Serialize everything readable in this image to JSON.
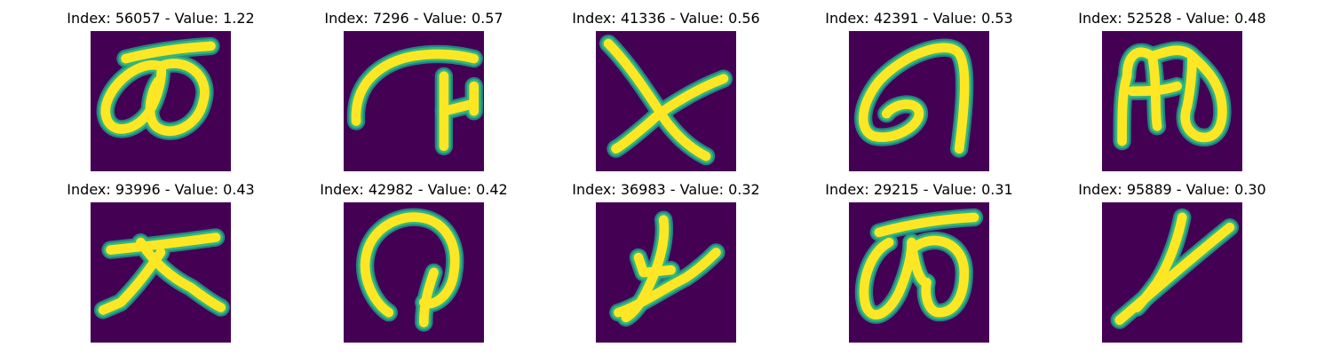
{
  "chart_data": {
    "type": "image_grid",
    "colormap": "viridis",
    "background_color": "#440154",
    "stroke_colors": [
      "#fde725",
      "#35b779",
      "#21918c"
    ],
    "panels": [
      {
        "title": "Index: 56057 - Value: 1.22",
        "index": 56057,
        "value": 1.22,
        "glyph": "loop-pair-with-bar"
      },
      {
        "title": "Index: 7296 - Value: 0.57",
        "index": 7296,
        "value": 0.57,
        "glyph": "arc-with-hook"
      },
      {
        "title": "Index: 41336 - Value: 0.56",
        "index": 41336,
        "value": 0.56,
        "glyph": "cross"
      },
      {
        "title": "Index: 42391 - Value: 0.53",
        "index": 42391,
        "value": 0.53,
        "glyph": "hook-loop"
      },
      {
        "title": "Index: 52528 - Value: 0.48",
        "index": 52528,
        "value": 0.48,
        "glyph": "double-arch"
      },
      {
        "title": "Index: 93996 - Value: 0.43",
        "index": 93996,
        "value": 0.43,
        "glyph": "bar-with-legs"
      },
      {
        "title": "Index: 42982 - Value: 0.42",
        "index": 42982,
        "value": 0.42,
        "glyph": "arch-with-stem"
      },
      {
        "title": "Index: 36983 - Value: 0.32",
        "index": 36983,
        "value": 0.32,
        "glyph": "stroke-figure"
      },
      {
        "title": "Index: 29215 - Value: 0.31",
        "index": 29215,
        "value": 0.31,
        "glyph": "loops-with-top-bar"
      },
      {
        "title": "Index: 95889 - Value: 0.30",
        "index": 95889,
        "value": 0.3,
        "glyph": "diagonal-cross"
      }
    ]
  }
}
